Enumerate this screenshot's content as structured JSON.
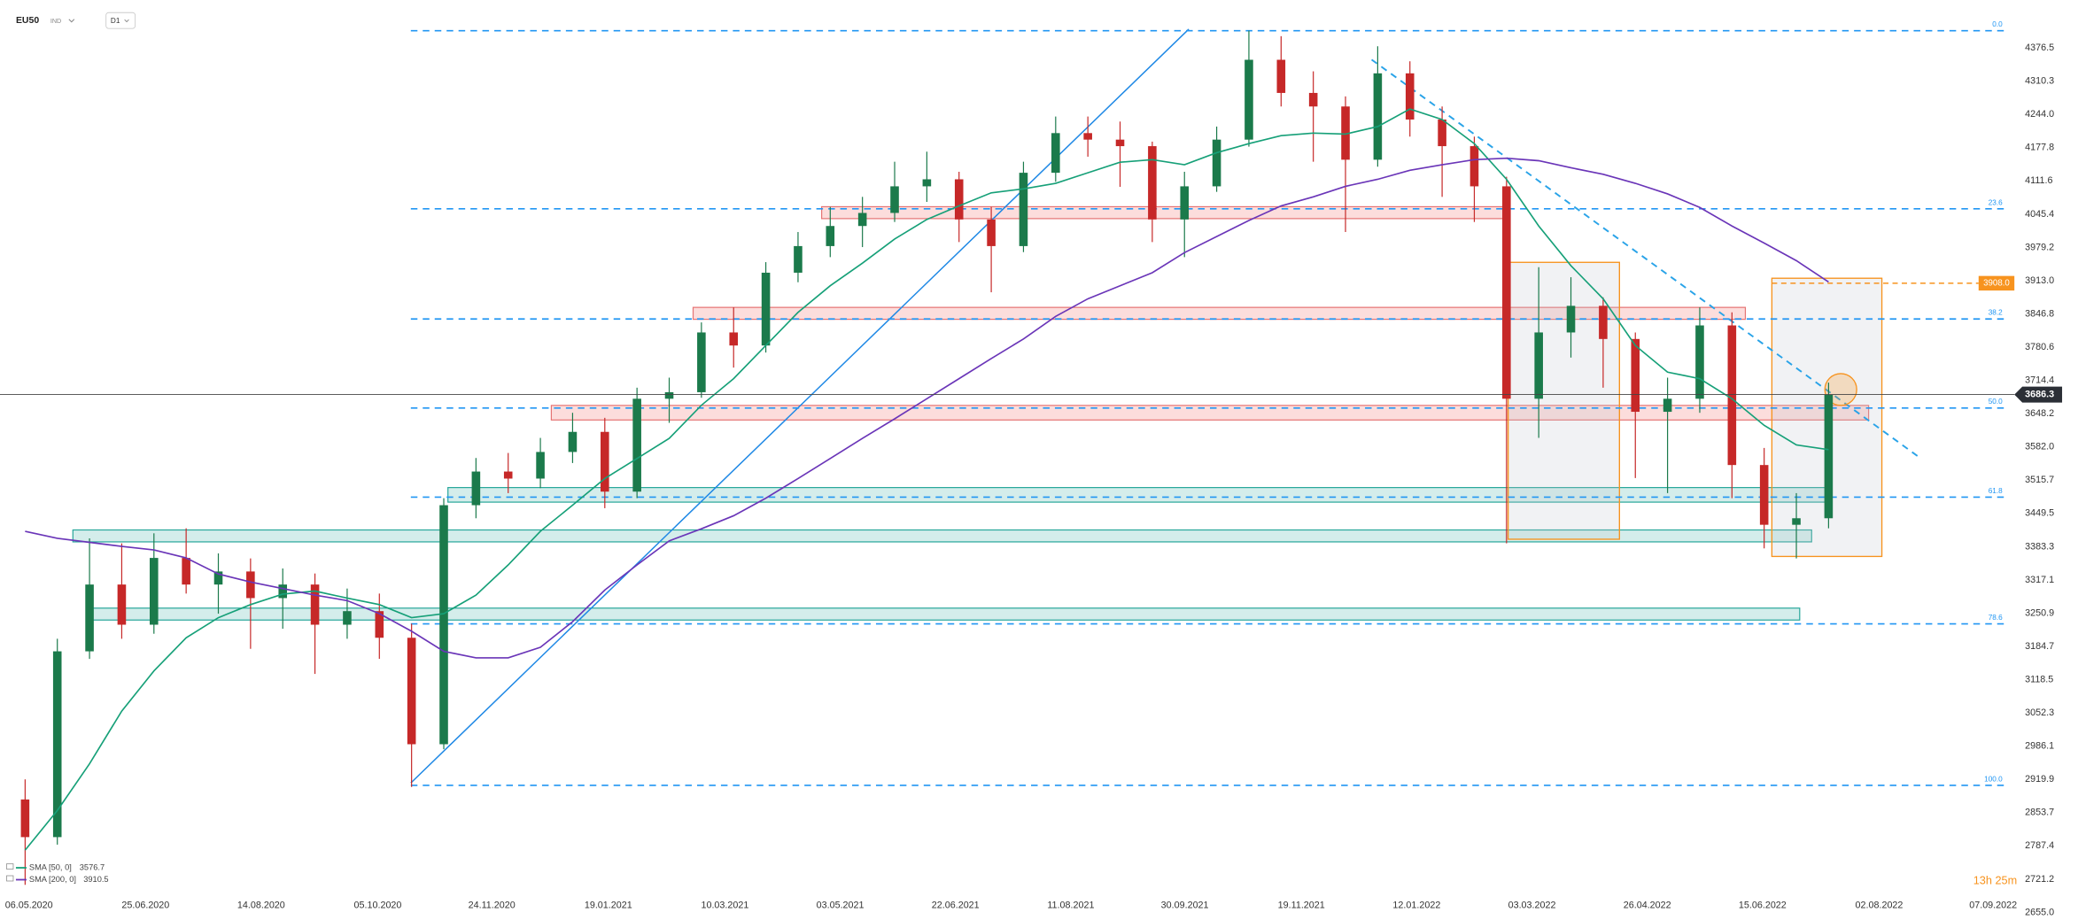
{
  "chart_data": {
    "type": "candlestick",
    "title": "EU50",
    "subtitle": "IND",
    "timeframe": "D1",
    "countdown": "13h 25m",
    "candles": {
      "up_color": "#1b7a4b",
      "down_color": "#c62828",
      "open": [
        2880,
        2805,
        3175,
        3308,
        3228,
        3361,
        3308,
        3334,
        3281,
        3308,
        3228,
        3255,
        3202,
        2990,
        3466,
        3533,
        3519,
        3572,
        3612,
        3493,
        3678,
        3691,
        3810,
        3784,
        3929,
        3982,
        4022,
        4048,
        4101,
        4115,
        4035,
        3982,
        4128,
        4207,
        4194,
        4181,
        4035,
        4101,
        4194,
        4353,
        4287,
        4260,
        4154,
        4326,
        4234,
        4181,
        4101,
        3678,
        3810,
        3863,
        3797,
        3652,
        3678,
        3824,
        3546,
        3427,
        3440
      ],
      "high": [
        2920,
        3200,
        3400,
        3390,
        3410,
        3420,
        3370,
        3360,
        3340,
        3330,
        3300,
        3290,
        3230,
        3480,
        3560,
        3570,
        3600,
        3650,
        3640,
        3700,
        3720,
        3830,
        3860,
        3950,
        4010,
        4060,
        4080,
        4150,
        4170,
        4130,
        4060,
        4150,
        4240,
        4240,
        4230,
        4190,
        4130,
        4220,
        4411,
        4400,
        4330,
        4280,
        4380,
        4350,
        4260,
        4200,
        4120,
        3940,
        3920,
        3880,
        3810,
        3720,
        3860,
        3850,
        3580,
        3490,
        3710
      ],
      "low": [
        2710,
        2790,
        3160,
        3200,
        3210,
        3290,
        3250,
        3180,
        3220,
        3130,
        3200,
        3160,
        2905,
        2980,
        3440,
        3490,
        3500,
        3550,
        3460,
        3480,
        3630,
        3680,
        3740,
        3770,
        3910,
        3960,
        3980,
        4030,
        4070,
        3990,
        3890,
        3970,
        4110,
        4160,
        4100,
        3990,
        3960,
        4090,
        4180,
        4260,
        4150,
        4010,
        4140,
        4200,
        4080,
        4030,
        3390,
        3600,
        3760,
        3700,
        3520,
        3490,
        3650,
        3480,
        3380,
        3360,
        3420
      ],
      "close": [
        2805,
        3175,
        3308,
        3228,
        3361,
        3308,
        3334,
        3281,
        3308,
        3228,
        3255,
        3202,
        2990,
        3466,
        3533,
        3519,
        3572,
        3612,
        3493,
        3678,
        3691,
        3810,
        3784,
        3929,
        3982,
        4022,
        4048,
        4101,
        4115,
        4035,
        3982,
        4128,
        4207,
        4194,
        4181,
        4035,
        4101,
        4194,
        4353,
        4287,
        4260,
        4154,
        4326,
        4234,
        4181,
        4101,
        3678,
        3810,
        3863,
        3797,
        3652,
        3678,
        3824,
        3546,
        3427,
        3440,
        3686.3
      ]
    },
    "series": [
      {
        "name": "SMA [50, 0]",
        "color": "#16a078",
        "values": [
          2779,
          2858,
          2951,
          3056,
          3136,
          3202,
          3242,
          3268,
          3289,
          3295,
          3281,
          3268,
          3242,
          3250,
          3287,
          3347,
          3414,
          3466,
          3519,
          3559,
          3599,
          3665,
          3718,
          3784,
          3850,
          3903,
          3948,
          3996,
          4035,
          4062,
          4088,
          4096,
          4107,
          4128,
          4149,
          4154,
          4144,
          4168,
          4186,
          4202,
          4207,
          4205,
          4220,
          4255,
          4234,
          4186,
          4115,
          4022,
          3943,
          3877,
          3784,
          3731,
          3718,
          3678,
          3625,
          3586,
          3576.7
        ]
      },
      {
        "name": "SMA [200, 0]",
        "color": "#6a35b8",
        "values": [
          3414,
          3400,
          3392,
          3384,
          3377,
          3361,
          3329,
          3313,
          3300,
          3287,
          3276,
          3250,
          3215,
          3175,
          3162,
          3162,
          3183,
          3234,
          3297,
          3347,
          3395,
          3419,
          3445,
          3480,
          3519,
          3559,
          3599,
          3638,
          3678,
          3718,
          3758,
          3797,
          3842,
          3877,
          3903,
          3929,
          3969,
          4001,
          4033,
          4062,
          4080,
          4101,
          4115,
          4133,
          4144,
          4154,
          4157,
          4152,
          4138,
          4125,
          4107,
          4086,
          4059,
          4022,
          3988,
          3953,
          3910.5
        ]
      }
    ],
    "xlim": [
      -0.78,
      61.77
    ],
    "xticks": [
      {
        "value": 0.12,
        "label": "06.05.2020"
      },
      {
        "value": 3.74,
        "label": "25.06.2020"
      },
      {
        "value": 7.33,
        "label": "14.08.2020"
      },
      {
        "value": 10.95,
        "label": "05.10.2020"
      },
      {
        "value": 14.49,
        "label": "24.11.2020"
      },
      {
        "value": 18.11,
        "label": "19.01.2021"
      },
      {
        "value": 21.73,
        "label": "10.03.2021"
      },
      {
        "value": 25.31,
        "label": "03.05.2021"
      },
      {
        "value": 28.89,
        "label": "22.06.2021"
      },
      {
        "value": 32.47,
        "label": "11.08.2021"
      },
      {
        "value": 36.01,
        "label": "30.09.2021"
      },
      {
        "value": 39.63,
        "label": "19.11.2021"
      },
      {
        "value": 43.21,
        "label": "12.01.2022"
      },
      {
        "value": 46.79,
        "label": "03.03.2022"
      },
      {
        "value": 50.37,
        "label": "26.04.2022"
      },
      {
        "value": 53.95,
        "label": "15.06.2022"
      },
      {
        "value": 57.57,
        "label": "02.08.2022"
      },
      {
        "value": 61.11,
        "label": "07.09.2022"
      }
    ],
    "ylim": [
      2640,
      4472
    ],
    "yticks": [
      4376.5,
      4310.3,
      {
        "value": 4244,
        "label": "4244.0"
      },
      4177.8,
      4111.6,
      4045.4,
      3979.2,
      {
        "value": 3913,
        "label": "3913.0"
      },
      3846.8,
      3780.6,
      3714.4,
      3648.2,
      {
        "value": 3582,
        "label": "3582.0"
      },
      3515.7,
      3449.5,
      3383.3,
      3317.1,
      3250.9,
      3184.7,
      3118.5,
      3052.3,
      2986.1,
      2919.9,
      2853.7,
      2787.4,
      2721.2,
      {
        "value": 2655,
        "label": "2655.0"
      }
    ],
    "fib_levels": [
      {
        "label": "0.0",
        "value": 4410.9
      },
      {
        "label": "23.6",
        "value": 4056.2
      },
      {
        "label": "38.2",
        "value": 3836.8
      },
      {
        "label": "50.0",
        "value": 3659.5
      },
      {
        "label": "61.8",
        "value": 3482.1
      },
      {
        "label": "78.6",
        "value": 3229.6
      },
      {
        "label": "100.0",
        "value": 2908
      }
    ],
    "fib_color": "#2196f3",
    "marker_level": {
      "value": 3908,
      "label": "3908.0"
    },
    "marker_color": "#f7931e"
  }
}
